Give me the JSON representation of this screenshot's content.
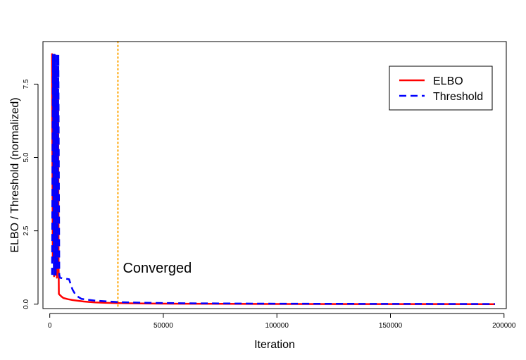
{
  "chart_data": {
    "type": "line",
    "title": "",
    "xlabel": "Iteration",
    "ylabel": "ELBO / Threshold (normalized)",
    "xlim": [
      -3000,
      201000
    ],
    "ylim": [
      -0.15,
      8.95
    ],
    "x_ticks": [
      0,
      50000,
      100000,
      150000,
      200000
    ],
    "x_tick_labels": [
      "0",
      "50000",
      "100000",
      "150000",
      "200000"
    ],
    "y_ticks": [
      0,
      2.5,
      5,
      7.5
    ],
    "y_tick_labels": [
      "0.0",
      "2.5",
      "5.0",
      "7.5"
    ],
    "grid": false,
    "legend_position": "top-right",
    "series": [
      {
        "name": "ELBO",
        "color": "#ff0000",
        "dash": "solid",
        "x": [
          1000,
          1300,
          1600,
          1900,
          2200,
          2500,
          2800,
          3100,
          3300,
          3500,
          3700,
          3900,
          4000,
          5000,
          6000,
          8000,
          10000,
          12000,
          15000,
          20000,
          25000,
          30000,
          40000,
          50000,
          75000,
          100000,
          150000,
          196000
        ],
        "y": [
          8.55,
          1.5,
          8.5,
          0.95,
          8.3,
          1.2,
          8.0,
          0.9,
          7.6,
          1.6,
          7.0,
          1.2,
          0.35,
          0.27,
          0.21,
          0.17,
          0.14,
          0.12,
          0.09,
          0.06,
          0.045,
          0.035,
          0.025,
          0.018,
          0.01,
          0.006,
          0.003,
          0.002
        ]
      },
      {
        "name": "Threshold",
        "color": "#0000ff",
        "dash": "dashed",
        "x": [
          1000,
          1400,
          1800,
          2200,
          2600,
          3000,
          3400,
          3800,
          4200,
          4500,
          6000,
          8500,
          10000,
          11500,
          14000,
          20000,
          30000,
          40000,
          60000,
          100000,
          150000,
          196000
        ],
        "y": [
          1.0,
          8.5,
          1.0,
          8.5,
          1.0,
          8.5,
          1.2,
          8.5,
          1.0,
          0.9,
          0.88,
          0.85,
          0.5,
          0.3,
          0.18,
          0.12,
          0.07,
          0.05,
          0.03,
          0.015,
          0.008,
          0.005
        ]
      }
    ],
    "annotations": [
      {
        "text": "Converged",
        "x": 30000,
        "y": 1.0
      }
    ],
    "vlines": [
      {
        "x": 30000,
        "color": "#ffa500",
        "style": "dotted"
      }
    ]
  }
}
